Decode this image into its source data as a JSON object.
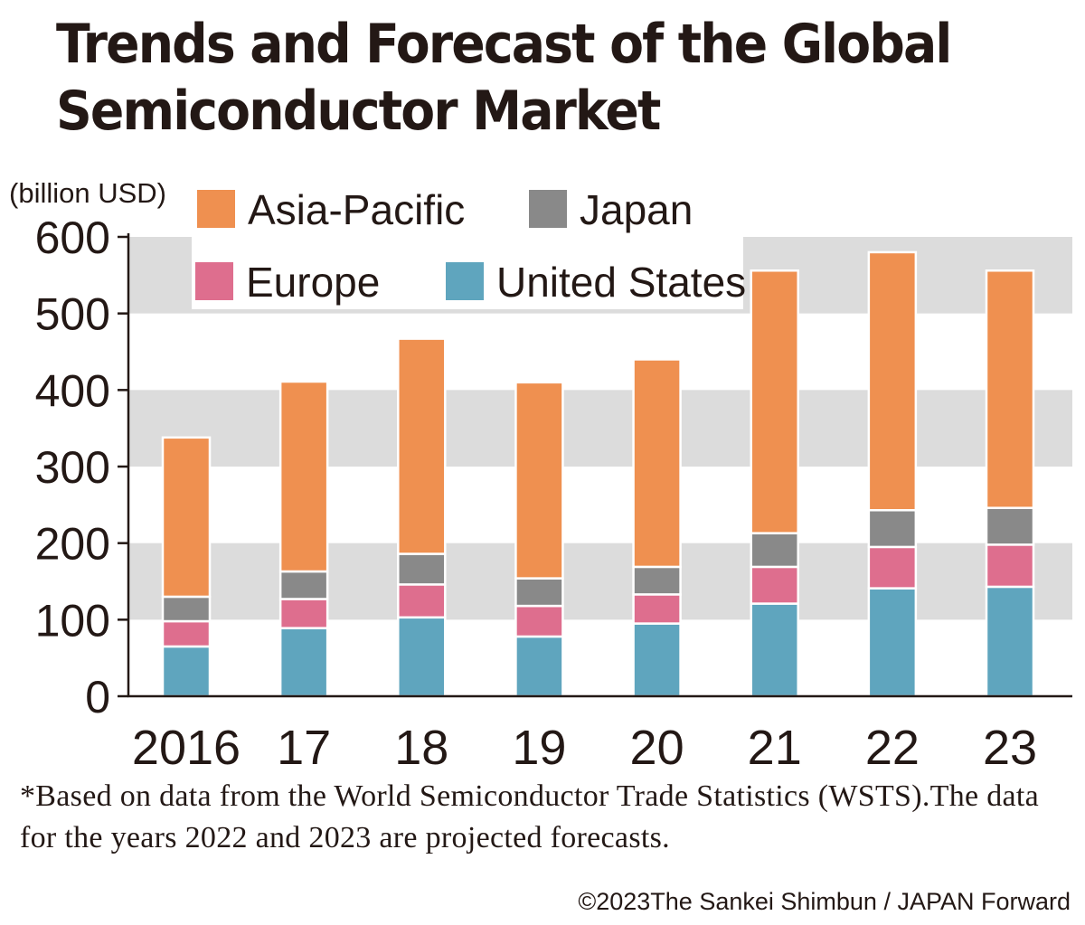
{
  "title_line1": "Trends and Forecast of the Global",
  "title_line2": "Semiconductor Market",
  "note": "*Based on data from the World Semiconductor Trade Statistics (WSTS).The data for the years 2022 and 2023 are projected forecasts.",
  "credit": "©2023The Sankei Shimbun / JAPAN Forward",
  "chart_data": {
    "type": "bar",
    "stacked": true,
    "title": "Trends and Forecast of the Global Semiconductor Market",
    "ylabel": "(billion USD)",
    "xlabel": "",
    "ylim": [
      0,
      600
    ],
    "yticks": [
      "0",
      "100",
      "200",
      "300",
      "400",
      "500",
      "600"
    ],
    "categories": [
      "2016",
      "17",
      "18",
      "19",
      "20",
      "21",
      "22",
      "23"
    ],
    "grid": "alternating horizontal bands",
    "legend_placement": "top",
    "series": [
      {
        "name": "United States",
        "color": "#5fa5be",
        "values": [
          65,
          89,
          103,
          78,
          95,
          121,
          141,
          143
        ]
      },
      {
        "name": "Europe",
        "color": "#de6e8e",
        "values": [
          33,
          38,
          43,
          40,
          38,
          48,
          54,
          55
        ]
      },
      {
        "name": "Japan",
        "color": "#898989",
        "values": [
          32,
          36,
          40,
          36,
          36,
          44,
          48,
          48
        ]
      },
      {
        "name": "Asia-Pacific",
        "color": "#ef9050",
        "values": [
          208,
          248,
          281,
          256,
          271,
          343,
          337,
          310
        ]
      }
    ],
    "legend_order": [
      "Asia-Pacific",
      "Japan",
      "Europe",
      "United States"
    ]
  }
}
